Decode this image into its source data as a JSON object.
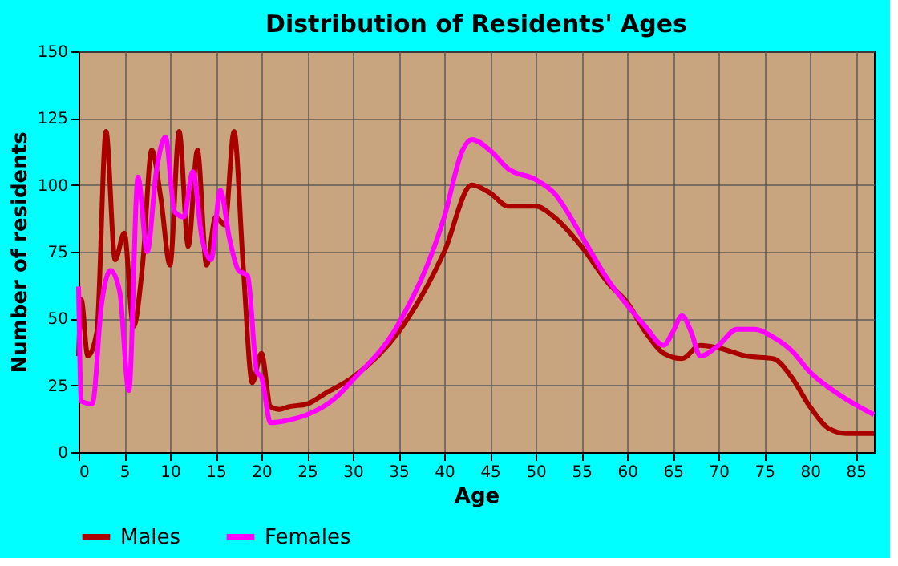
{
  "chart_data": {
    "type": "line",
    "title": "Distribution of Residents' Ages",
    "xlabel": "Age",
    "ylabel": "Number of residents",
    "xlim": [
      0,
      87
    ],
    "xticks": [
      0,
      5,
      10,
      15,
      20,
      25,
      30,
      35,
      40,
      45,
      50,
      55,
      60,
      65,
      70,
      75,
      80,
      85
    ],
    "ylim": [
      0,
      150
    ],
    "yticks": [
      0,
      25,
      50,
      75,
      100,
      125,
      150
    ],
    "grid": true,
    "legend": "bottom",
    "series": [
      {
        "name": "Males",
        "color": "#aa0000",
        "x": [
          0,
          0.3,
          1,
          2,
          3,
          4,
          5,
          6,
          7,
          8,
          9,
          10,
          11,
          12,
          13,
          14,
          15,
          16,
          17,
          18,
          19,
          20,
          21,
          22,
          23,
          25,
          27,
          30,
          35,
          40,
          43,
          45,
          47,
          50,
          52,
          55,
          58,
          60,
          62,
          64,
          66,
          68,
          70,
          73,
          76,
          78,
          80,
          82,
          84,
          87
        ],
        "values": [
          36,
          57,
          36,
          45,
          120,
          72,
          82,
          47,
          70,
          113,
          95,
          70,
          120,
          77,
          113,
          70,
          88,
          85,
          120,
          70,
          26,
          37,
          17,
          16,
          17,
          18,
          22,
          28,
          45,
          75,
          100,
          97,
          92,
          92,
          88,
          77,
          63,
          56,
          45,
          37,
          35,
          40,
          39,
          36,
          35,
          28,
          17,
          9,
          7,
          7
        ]
      },
      {
        "name": "Females",
        "color": "#ff00ff",
        "x": [
          0,
          0.3,
          1.5,
          2.5,
          3.5,
          4.5,
          5.5,
          6.5,
          7.5,
          8.5,
          9.5,
          10.5,
          11.5,
          12.5,
          13.5,
          14.5,
          15.5,
          16.5,
          17.5,
          18.5,
          19.5,
          20,
          21,
          23,
          25,
          28,
          30,
          35,
          40,
          42,
          43,
          45,
          47,
          50,
          52,
          55,
          58,
          60,
          62,
          64,
          65,
          66,
          67,
          68,
          70,
          72,
          74,
          76,
          78,
          80,
          83,
          87
        ],
        "values": [
          62,
          19,
          18,
          55,
          68,
          60,
          23,
          103,
          75,
          105,
          118,
          90,
          88,
          105,
          80,
          72,
          98,
          80,
          68,
          66,
          30,
          28,
          11,
          12,
          14,
          20,
          27,
          48,
          88,
          113,
          117,
          113,
          106,
          102,
          97,
          81,
          64,
          55,
          47,
          40,
          45,
          51,
          45,
          36,
          40,
          46,
          46,
          43,
          38,
          30,
          22,
          14
        ]
      }
    ]
  }
}
